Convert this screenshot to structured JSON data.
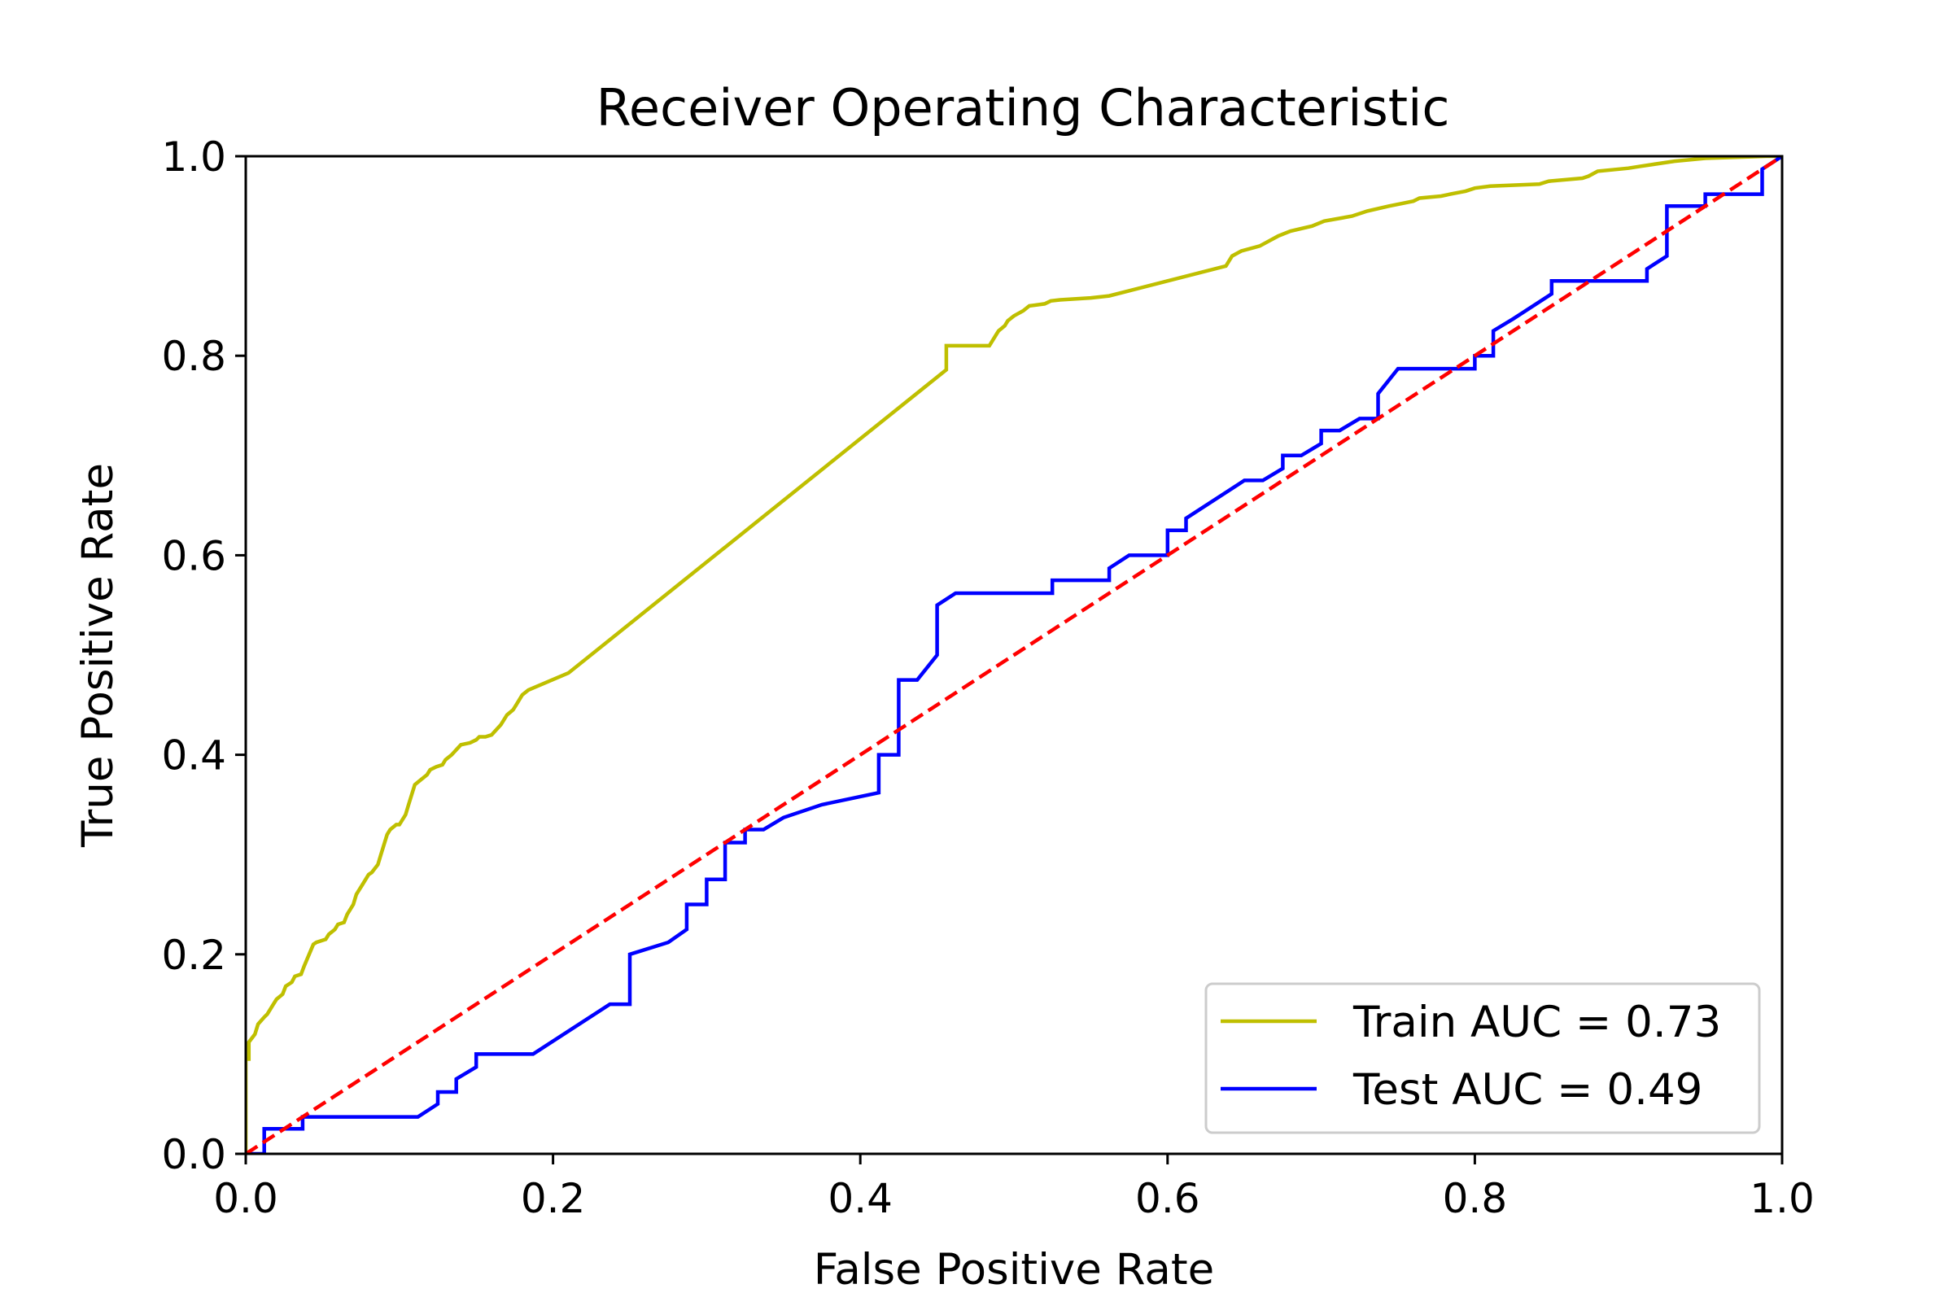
{
  "chart_data": {
    "type": "line",
    "title": "Receiver Operating Characteristic",
    "xlabel": "False Positive Rate",
    "ylabel": "True Positive Rate",
    "xlim": [
      0,
      1
    ],
    "ylim": [
      0,
      1
    ],
    "xticks": [
      "0.0",
      "0.2",
      "0.4",
      "0.6",
      "0.8",
      "1.0"
    ],
    "yticks": [
      "0.0",
      "0.2",
      "0.4",
      "0.6",
      "0.8",
      "1.0"
    ],
    "grid": false,
    "legend_position": "lower-right",
    "series": [
      {
        "name": "Train AUC = 0.73",
        "color": "#bfbf00",
        "style": "solid",
        "x": [
          0.0,
          0.0,
          0.002,
          0.002,
          0.006,
          0.008,
          0.012,
          0.014,
          0.018,
          0.02,
          0.024,
          0.026,
          0.03,
          0.032,
          0.036,
          0.038,
          0.044,
          0.046,
          0.052,
          0.054,
          0.058,
          0.06,
          0.064,
          0.066,
          0.07,
          0.072,
          0.074,
          0.076,
          0.08,
          0.082,
          0.086,
          0.088,
          0.09,
          0.092,
          0.094,
          0.098,
          0.1,
          0.104,
          0.106,
          0.11,
          0.114,
          0.118,
          0.12,
          0.124,
          0.128,
          0.13,
          0.134,
          0.14,
          0.146,
          0.15,
          0.152,
          0.156,
          0.16,
          0.166,
          0.17,
          0.174,
          0.176,
          0.18,
          0.184,
          0.21,
          0.456,
          0.456,
          0.464,
          0.484,
          0.488,
          0.49,
          0.494,
          0.496,
          0.5,
          0.506,
          0.51,
          0.52,
          0.524,
          0.53,
          0.55,
          0.562,
          0.638,
          0.642,
          0.648,
          0.66,
          0.666,
          0.672,
          0.68,
          0.694,
          0.702,
          0.72,
          0.73,
          0.744,
          0.76,
          0.764,
          0.778,
          0.784,
          0.794,
          0.8,
          0.81,
          0.842,
          0.848,
          0.87,
          0.874,
          0.88,
          0.9,
          0.908,
          0.93,
          0.95,
          0.99,
          1.0
        ],
        "y": [
          0.0,
          0.095,
          0.095,
          0.112,
          0.12,
          0.13,
          0.137,
          0.14,
          0.15,
          0.155,
          0.16,
          0.168,
          0.172,
          0.178,
          0.18,
          0.188,
          0.21,
          0.212,
          0.215,
          0.22,
          0.225,
          0.23,
          0.232,
          0.24,
          0.25,
          0.26,
          0.265,
          0.27,
          0.28,
          0.282,
          0.29,
          0.3,
          0.31,
          0.32,
          0.325,
          0.33,
          0.33,
          0.34,
          0.35,
          0.37,
          0.375,
          0.38,
          0.385,
          0.388,
          0.39,
          0.395,
          0.4,
          0.41,
          0.412,
          0.415,
          0.418,
          0.418,
          0.42,
          0.43,
          0.44,
          0.445,
          0.45,
          0.46,
          0.465,
          0.482,
          0.786,
          0.81,
          0.81,
          0.81,
          0.82,
          0.825,
          0.83,
          0.835,
          0.84,
          0.845,
          0.85,
          0.852,
          0.855,
          0.856,
          0.858,
          0.86,
          0.89,
          0.9,
          0.905,
          0.91,
          0.915,
          0.92,
          0.925,
          0.93,
          0.935,
          0.94,
          0.945,
          0.95,
          0.955,
          0.958,
          0.96,
          0.962,
          0.965,
          0.968,
          0.97,
          0.972,
          0.975,
          0.978,
          0.98,
          0.985,
          0.988,
          0.99,
          0.995,
          0.998,
          1.0,
          1.0
        ]
      },
      {
        "name": "Test AUC = 0.49",
        "color": "#0000ff",
        "style": "solid",
        "x": [
          0.0,
          0.012,
          0.012,
          0.037,
          0.037,
          0.112,
          0.125,
          0.125,
          0.137,
          0.137,
          0.15,
          0.15,
          0.187,
          0.237,
          0.25,
          0.25,
          0.275,
          0.287,
          0.287,
          0.3,
          0.3,
          0.312,
          0.312,
          0.325,
          0.325,
          0.337,
          0.35,
          0.375,
          0.412,
          0.412,
          0.425,
          0.425,
          0.437,
          0.45,
          0.45,
          0.462,
          0.525,
          0.525,
          0.562,
          0.562,
          0.575,
          0.6,
          0.6,
          0.612,
          0.612,
          0.65,
          0.662,
          0.675,
          0.675,
          0.687,
          0.7,
          0.7,
          0.712,
          0.725,
          0.737,
          0.737,
          0.75,
          0.787,
          0.8,
          0.8,
          0.812,
          0.812,
          0.825,
          0.85,
          0.85,
          0.887,
          0.912,
          0.912,
          0.925,
          0.925,
          0.95,
          0.95,
          0.987,
          0.987,
          1.0
        ],
        "y": [
          0.0,
          0.0,
          0.025,
          0.025,
          0.037,
          0.037,
          0.05,
          0.062,
          0.062,
          0.075,
          0.087,
          0.1,
          0.1,
          0.15,
          0.15,
          0.2,
          0.212,
          0.225,
          0.25,
          0.25,
          0.275,
          0.275,
          0.312,
          0.312,
          0.325,
          0.325,
          0.337,
          0.35,
          0.362,
          0.4,
          0.4,
          0.475,
          0.475,
          0.5,
          0.55,
          0.562,
          0.562,
          0.575,
          0.575,
          0.587,
          0.6,
          0.6,
          0.625,
          0.625,
          0.637,
          0.675,
          0.675,
          0.687,
          0.7,
          0.7,
          0.712,
          0.725,
          0.725,
          0.737,
          0.737,
          0.762,
          0.787,
          0.787,
          0.787,
          0.8,
          0.8,
          0.825,
          0.837,
          0.862,
          0.875,
          0.875,
          0.875,
          0.887,
          0.9,
          0.95,
          0.95,
          0.962,
          0.962,
          0.987,
          1.0
        ]
      },
      {
        "color": "#ff0000",
        "style": "dashed",
        "x": [
          0,
          1
        ],
        "y": [
          0,
          1
        ]
      }
    ]
  }
}
